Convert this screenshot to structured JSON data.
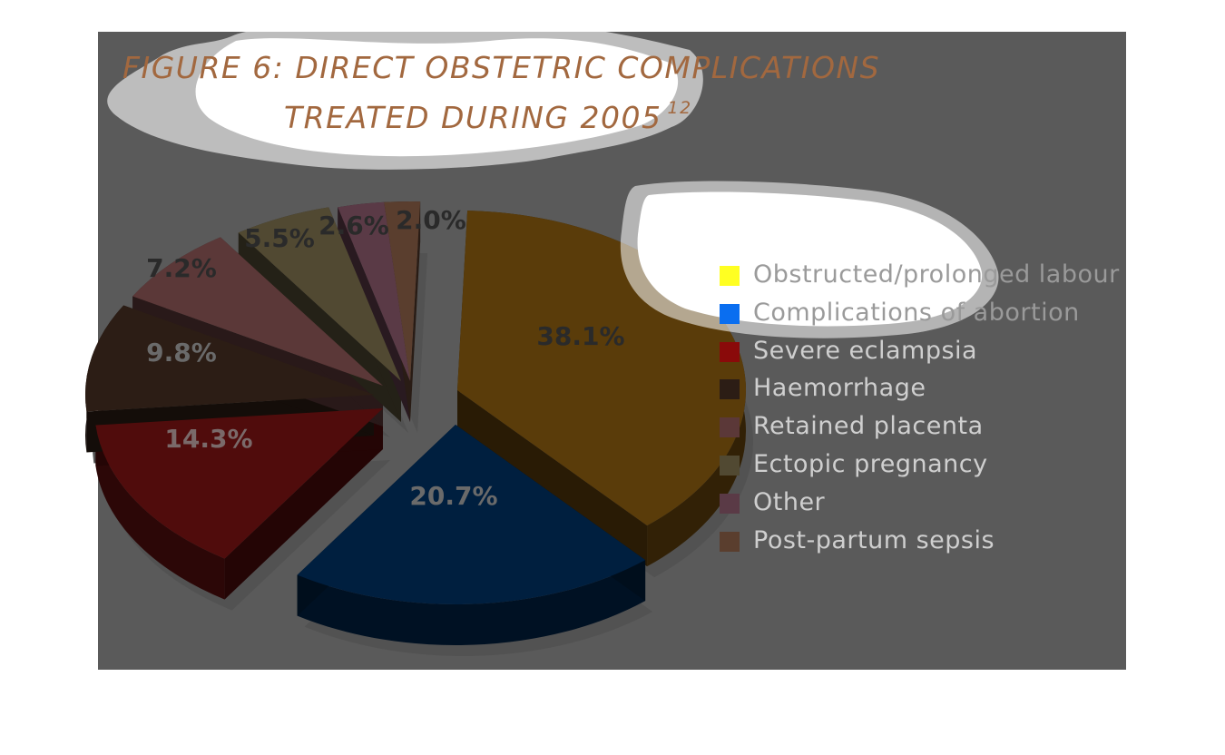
{
  "chart_data": {
    "type": "pie",
    "title": "FIGURE 6: DIRECT OBSTETRIC COMPLICATIONS TREATED DURING 2005",
    "title_lines": [
      "FIGURE 6: DIRECT OBSTETRIC COMPLICATIONS",
      "TREATED DURING 2005"
    ],
    "title_superscript": "12",
    "three_d": true,
    "exploded": true,
    "legend_position": "right",
    "slices": [
      {
        "label": "Obstructed/prolonged labour",
        "value": 38.1,
        "value_label": "38.1%",
        "color": "#ffff22",
        "shaded": "#5a3c0a"
      },
      {
        "label": "Complications of abortion",
        "value": 20.7,
        "value_label": "20.7%",
        "color": "#0a6ef0",
        "shaded": "#001f3f"
      },
      {
        "label": "Severe eclampsia",
        "value": 14.3,
        "value_label": "14.3%",
        "color": "#8a0a0a",
        "shaded": "#500c0c"
      },
      {
        "label": "Haemorrhage",
        "value": 9.8,
        "value_label": "9.8%",
        "color": "#2c1d15",
        "shaded": "#2c1d15"
      },
      {
        "label": "Retained placenta",
        "value": 7.2,
        "value_label": "7.2%",
        "color": "#5b3838",
        "shaded": "#5b3838"
      },
      {
        "label": "Ectopic pregnancy",
        "value": 5.5,
        "value_label": "5.5%",
        "color": "#514932",
        "shaded": "#514932"
      },
      {
        "label": "Other",
        "value": 2.6,
        "value_label": "2.6%",
        "color": "#5a3a46",
        "shaded": "#5a3a46"
      },
      {
        "label": "Post-partum sepsis",
        "value": 2.0,
        "value_label": "2.0%",
        "color": "#5a3e2e",
        "shaded": "#5a3e2e"
      }
    ]
  }
}
